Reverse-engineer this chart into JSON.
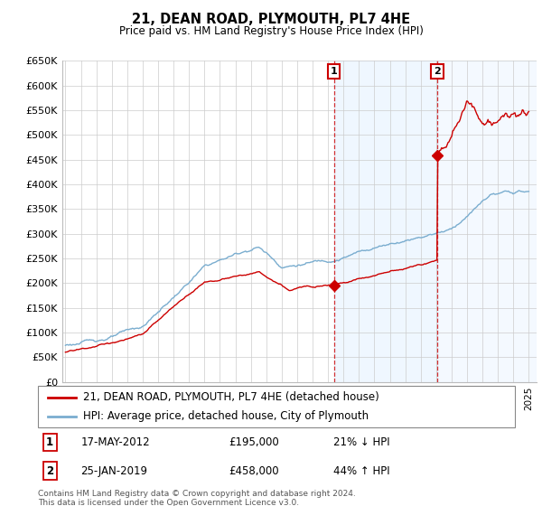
{
  "title": "21, DEAN ROAD, PLYMOUTH, PL7 4HE",
  "subtitle": "Price paid vs. HM Land Registry's House Price Index (HPI)",
  "ylim": [
    0,
    650000
  ],
  "yticks": [
    0,
    50000,
    100000,
    150000,
    200000,
    250000,
    300000,
    350000,
    400000,
    450000,
    500000,
    550000,
    600000,
    650000
  ],
  "ytick_labels": [
    "£0",
    "£50K",
    "£100K",
    "£150K",
    "£200K",
    "£250K",
    "£300K",
    "£350K",
    "£400K",
    "£450K",
    "£500K",
    "£550K",
    "£600K",
    "£650K"
  ],
  "t1_year": 2012.38,
  "t2_year": 2019.07,
  "t1_price": 195000,
  "t2_price": 458000,
  "legend1": "21, DEAN ROAD, PLYMOUTH, PL7 4HE (detached house)",
  "legend2": "HPI: Average price, detached house, City of Plymouth",
  "t1_date": "17-MAY-2012",
  "t2_date": "25-JAN-2019",
  "t1_pct": "21% ↓ HPI",
  "t2_pct": "44% ↑ HPI",
  "t1_price_str": "£195,000",
  "t2_price_str": "£458,000",
  "footnote": "Contains HM Land Registry data © Crown copyright and database right 2024.\nThis data is licensed under the Open Government Licence v3.0.",
  "line_color_red": "#cc0000",
  "line_color_blue": "#7aadcf",
  "shade_color": "#ddeeff",
  "shade_alpha": 0.45,
  "plot_bg": "#ffffff",
  "grid_color": "#cccccc"
}
